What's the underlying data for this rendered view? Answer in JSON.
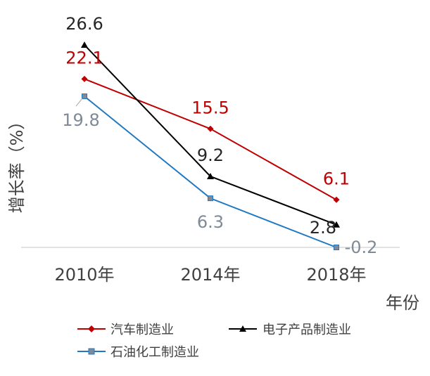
{
  "chart_data": {
    "type": "line",
    "title": "",
    "xlabel": "年份",
    "ylabel": "增长率（%）",
    "categories": [
      "2010年",
      "2014年",
      "2018年"
    ],
    "ylim": [
      -0.2,
      30
    ],
    "grid": false,
    "legend_position": "bottom",
    "series": [
      {
        "name": "汽车制造业",
        "values": [
          22.1,
          15.5,
          6.1
        ],
        "labels": [
          "22.1",
          "15.5",
          "6.1"
        ],
        "color": "#c00000",
        "label_color": "#c00000",
        "marker": "diamond"
      },
      {
        "name": "电子产品制造业",
        "values": [
          26.6,
          9.2,
          2.8
        ],
        "labels": [
          "26.6",
          "9.2",
          "2.8"
        ],
        "color": "#000000",
        "label_color": "#262626",
        "marker": "triangle"
      },
      {
        "name": "石油化工制造业",
        "values": [
          19.8,
          6.3,
          -0.2
        ],
        "labels": [
          "19.8",
          "6.3",
          "-0.2"
        ],
        "color": "#1f78c1",
        "label_color": "#7f8a99",
        "marker": "square"
      }
    ]
  }
}
